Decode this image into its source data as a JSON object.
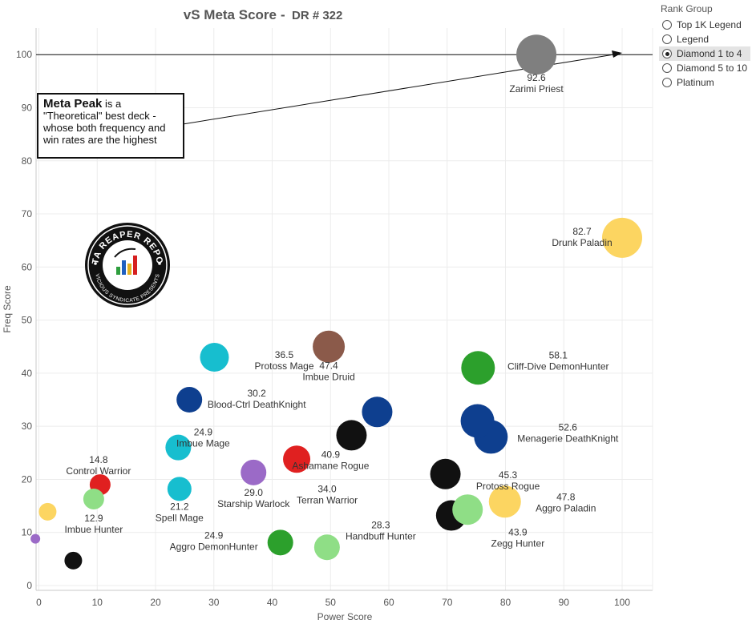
{
  "chart_data": {
    "type": "scatter",
    "title": "vS Meta Score",
    "subtitle": "DR # 322",
    "xlabel": "Power Score",
    "ylabel": "Freq Score",
    "xlim": [
      0,
      105
    ],
    "ylim": [
      0,
      105
    ],
    "xticks": [
      0,
      10,
      20,
      30,
      40,
      50,
      60,
      70,
      80,
      90,
      100
    ],
    "yticks": [
      0,
      10,
      20,
      30,
      40,
      50,
      60,
      70,
      80,
      90,
      100
    ],
    "grid": true,
    "reference_line_y": 100,
    "points": [
      {
        "x": 85.3,
        "y": 100.0,
        "size": 25,
        "color": "#7f7f7f",
        "score": "92.6",
        "name": "Zarimi Priest"
      },
      {
        "x": 100.0,
        "y": 65.5,
        "size": 25,
        "color": "#fcd561",
        "score": "82.7",
        "name": "Drunk Paladin"
      },
      {
        "x": 75.3,
        "y": 41.0,
        "size": 21,
        "color": "#2ca02c",
        "score": "58.1",
        "name": "Cliff-Dive DemonHunter"
      },
      {
        "x": 77.5,
        "y": 28.0,
        "size": 21,
        "color": "#0e3f8f",
        "score": "52.6",
        "name": "Menagerie DeathKnight"
      },
      {
        "x": 75.2,
        "y": 31.0,
        "size": 21,
        "color": "#0e3f8f",
        "score": "",
        "name": ""
      },
      {
        "x": 49.7,
        "y": 45.0,
        "size": 20,
        "color": "#8b5a4a",
        "score": "47.4",
        "name": "Imbue Druid"
      },
      {
        "x": 79.9,
        "y": 15.8,
        "size": 20,
        "color": "#fcd561",
        "score": "47.8",
        "name": "Aggro Paladin"
      },
      {
        "x": 69.7,
        "y": 21.0,
        "size": 19,
        "color": "#111111",
        "score": "45.3",
        "name": "Protoss Rogue"
      },
      {
        "x": 70.7,
        "y": 13.2,
        "size": 19,
        "color": "#111111",
        "score": "43.9",
        "name": "Zegg Hunter"
      },
      {
        "x": 73.5,
        "y": 14.3,
        "size": 19,
        "color": "#8fde86",
        "score": "",
        "name": ""
      },
      {
        "x": 53.6,
        "y": 28.3,
        "size": 19,
        "color": "#111111",
        "score": "40.9",
        "name": "Ashamane Rogue"
      },
      {
        "x": 58.0,
        "y": 32.7,
        "size": 19,
        "color": "#0e3f8f",
        "score": "",
        "name": ""
      },
      {
        "x": 30.1,
        "y": 43.0,
        "size": 18,
        "color": "#17becf",
        "score": "36.5",
        "name": "Protoss Mage"
      },
      {
        "x": 44.2,
        "y": 23.8,
        "size": 17,
        "color": "#e02020",
        "score": "34.0",
        "name": "Terran Warrior"
      },
      {
        "x": 25.8,
        "y": 35.0,
        "size": 16,
        "color": "#0e3f8f",
        "score": "30.2",
        "name": "Blood-Ctrl DeathKnight"
      },
      {
        "x": 36.8,
        "y": 21.3,
        "size": 16,
        "color": "#9b6ac7",
        "score": "29.0",
        "name": "Starship Warlock"
      },
      {
        "x": 49.4,
        "y": 7.2,
        "size": 16,
        "color": "#8fde86",
        "score": "28.3",
        "name": "Handbuff Hunter"
      },
      {
        "x": 23.9,
        "y": 26.0,
        "size": 16,
        "color": "#17becf",
        "score": "24.9",
        "name": "Imbue Mage"
      },
      {
        "x": 41.4,
        "y": 8.1,
        "size": 16,
        "color": "#2ca02c",
        "score": "24.9",
        "name": "Aggro DemonHunter"
      },
      {
        "x": 24.1,
        "y": 18.2,
        "size": 15,
        "color": "#17becf",
        "score": "21.2",
        "name": "Spell Mage"
      },
      {
        "x": 10.5,
        "y": 19.0,
        "size": 13,
        "color": "#e02020",
        "score": "14.8",
        "name": "Control Warrior"
      },
      {
        "x": 9.4,
        "y": 16.3,
        "size": 13,
        "color": "#8fde86",
        "score": "12.9",
        "name": "Imbue Hunter"
      },
      {
        "x": 1.5,
        "y": 13.9,
        "size": 11,
        "color": "#fcd561",
        "score": "",
        "name": ""
      },
      {
        "x": 5.9,
        "y": 4.7,
        "size": 11,
        "color": "#111111",
        "score": "",
        "name": ""
      },
      {
        "x": -0.6,
        "y": 8.8,
        "size": 6,
        "color": "#9b6ac7",
        "score": "",
        "name": ""
      }
    ]
  },
  "annotation": {
    "bold": "Meta Peak",
    "text": " is a \"Theoretical\" best deck - whose both frequency and win rates are the highest"
  },
  "logo": {
    "top": "DATA REAPER REPORT",
    "bottom": "VICIOUS SYNDICATE PRESENTS"
  },
  "legend": {
    "title": "Rank Group",
    "items": [
      {
        "label": "Top 1K Legend",
        "selected": false
      },
      {
        "label": "Legend",
        "selected": false
      },
      {
        "label": "Diamond 1 to 4",
        "selected": true
      },
      {
        "label": "Diamond 5 to 10",
        "selected": false
      },
      {
        "label": "Platinum",
        "selected": false
      }
    ]
  }
}
